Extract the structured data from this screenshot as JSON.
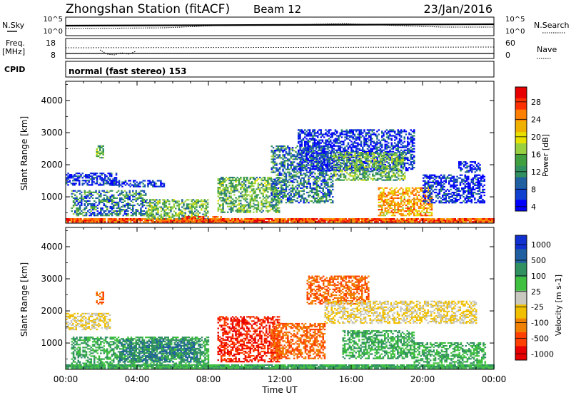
{
  "header": {
    "station": "Zhongshan Station (fitACF)",
    "beam": "Beam 12",
    "date": "23/Jan/2016"
  },
  "nsky_panel": {
    "left_label": "N.Sky",
    "right_label": "N.Search",
    "left_ticks": [
      "10^5",
      "10^0"
    ],
    "right_ticks": [
      "10^5",
      "10^0"
    ]
  },
  "freq_panel": {
    "left_label_line1": "Freq.",
    "left_label_line2": "[MHz]",
    "right_label": "Nave",
    "left_ticks": [
      "18",
      "8"
    ],
    "right_ticks": [
      "60",
      "0"
    ]
  },
  "cpid_panel": {
    "label": "CPID",
    "text": "normal (fast stereo) 153"
  },
  "power_colorbar": {
    "label": "Power [dB]",
    "ticks": [
      "28",
      "24",
      "20",
      "16",
      "12",
      "8",
      "4"
    ],
    "colors": [
      "#e80000",
      "#ff3000",
      "#ff8000",
      "#f0b000",
      "#e8e000",
      "#98d040",
      "#40a040",
      "#309060",
      "#2060a0",
      "#1040d0",
      "#0000ff"
    ]
  },
  "velocity_colorbar": {
    "label": "Velocity [m s-1]",
    "ticks": [
      "1000",
      "500",
      "100",
      "25",
      "-25",
      "-100",
      "-500",
      "-1000"
    ],
    "colors": [
      "#1030d0",
      "#2060a0",
      "#309060",
      "#40c040",
      "#c8c8c0",
      "#f0c000",
      "#f08000",
      "#ff4000",
      "#e80000"
    ]
  },
  "chart_data": [
    {
      "type": "heatmap",
      "title": "Power",
      "xlabel": "",
      "ylabel": "Slant Range [km]",
      "x_ticks": [
        "00:00",
        "04:00",
        "08:00",
        "12:00",
        "16:00",
        "20:00",
        "00:00"
      ],
      "y_ticks": [
        "4000",
        "3000",
        "2000",
        "1000"
      ],
      "xlim_hours": [
        0,
        24
      ],
      "ylim_km": [
        180,
        4600
      ],
      "bands": [
        {
          "t0": 0.0,
          "t1": 24.0,
          "r0": 200,
          "r1": 330,
          "level": 28
        },
        {
          "t0": 0.0,
          "t1": 2.8,
          "r0": 1350,
          "r1": 1750,
          "level": 8
        },
        {
          "t0": 2.5,
          "t1": 5.5,
          "r0": 1300,
          "r1": 1500,
          "level": 8
        },
        {
          "t0": 0.3,
          "t1": 4.5,
          "r0": 400,
          "r1": 1200,
          "level": 12
        },
        {
          "t0": 4.5,
          "t1": 8.0,
          "r0": 300,
          "r1": 900,
          "level": 16
        },
        {
          "t0": 6.5,
          "t1": 9.0,
          "r0": 220,
          "r1": 400,
          "level": 28
        },
        {
          "t0": 8.5,
          "t1": 12.0,
          "r0": 500,
          "r1": 1600,
          "level": 16
        },
        {
          "t0": 11.5,
          "t1": 15.0,
          "r0": 800,
          "r1": 2600,
          "level": 12
        },
        {
          "t0": 13.0,
          "t1": 19.5,
          "r0": 1800,
          "r1": 3100,
          "level": 8
        },
        {
          "t0": 15.0,
          "t1": 19.0,
          "r0": 1500,
          "r1": 2400,
          "level": 16
        },
        {
          "t0": 17.5,
          "t1": 20.5,
          "r0": 400,
          "r1": 1300,
          "level": 24
        },
        {
          "t0": 20.0,
          "t1": 23.5,
          "r0": 800,
          "r1": 1700,
          "level": 8
        },
        {
          "t0": 22.0,
          "t1": 23.2,
          "r0": 1750,
          "r1": 2100,
          "level": 8
        },
        {
          "t0": 1.7,
          "t1": 2.1,
          "r0": 2200,
          "r1": 2600,
          "level": 16
        }
      ]
    },
    {
      "type": "heatmap",
      "title": "Velocity",
      "xlabel": "Time UT",
      "ylabel": "Slant Range [km]",
      "x_ticks": [
        "00:00",
        "04:00",
        "08:00",
        "12:00",
        "16:00",
        "20:00",
        "00:00"
      ],
      "y_ticks": [
        "4000",
        "3000",
        "2000",
        "1000"
      ],
      "xlim_hours": [
        0,
        24
      ],
      "ylim_km": [
        180,
        4600
      ],
      "bands": [
        {
          "t0": 0.0,
          "t1": 24.0,
          "r0": 200,
          "r1": 330,
          "level": 100
        },
        {
          "t0": 0.0,
          "t1": 2.5,
          "r0": 1400,
          "r1": 1900,
          "level": 25
        },
        {
          "t0": 0.3,
          "t1": 8.0,
          "r0": 300,
          "r1": 1200,
          "level": 100
        },
        {
          "t0": 3.0,
          "t1": 7.5,
          "r0": 400,
          "r1": 1100,
          "level": 500
        },
        {
          "t0": 8.5,
          "t1": 12.0,
          "r0": 400,
          "r1": 1800,
          "level": -500
        },
        {
          "t0": 11.5,
          "t1": 14.5,
          "r0": 500,
          "r1": 1600,
          "level": -100
        },
        {
          "t0": 13.5,
          "t1": 17.0,
          "r0": 2200,
          "r1": 3100,
          "level": -100
        },
        {
          "t0": 14.5,
          "t1": 23.0,
          "r0": 1600,
          "r1": 2300,
          "level": 25
        },
        {
          "t0": 15.5,
          "t1": 19.5,
          "r0": 500,
          "r1": 1400,
          "level": 100
        },
        {
          "t0": 19.5,
          "t1": 23.5,
          "r0": 350,
          "r1": 1000,
          "level": 100
        },
        {
          "t0": 1.7,
          "t1": 2.1,
          "r0": 2200,
          "r1": 2600,
          "level": -100
        }
      ]
    }
  ]
}
